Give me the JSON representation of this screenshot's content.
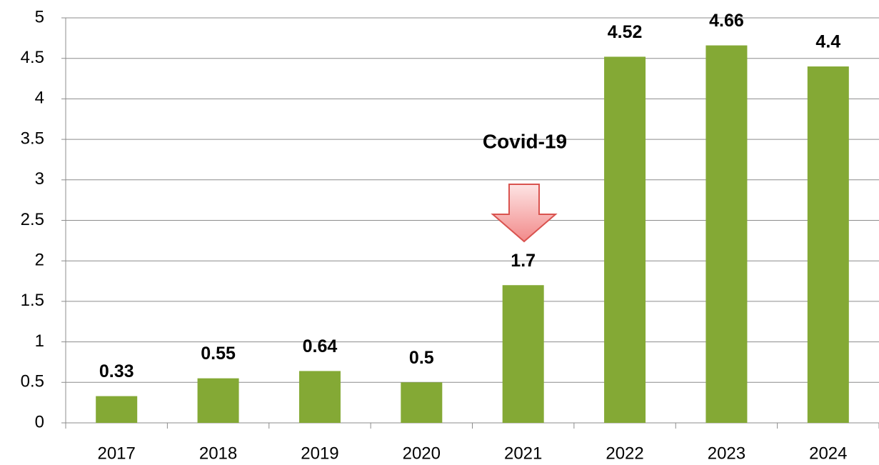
{
  "chart_data": {
    "type": "bar",
    "categories": [
      "2017",
      "2018",
      "2019",
      "2020",
      "2021",
      "2022",
      "2023",
      "2024"
    ],
    "values": [
      0.33,
      0.55,
      0.64,
      0.5,
      1.7,
      4.52,
      4.66,
      4.4
    ],
    "color": "#84a935",
    "label_color": "#f26b0f",
    "ylim": [
      0,
      5
    ],
    "yticks": [
      0,
      0.5,
      1,
      1.5,
      2,
      2.5,
      3,
      3.5,
      4,
      4.5,
      5
    ],
    "grid": true,
    "annotation": "Covid-19"
  }
}
